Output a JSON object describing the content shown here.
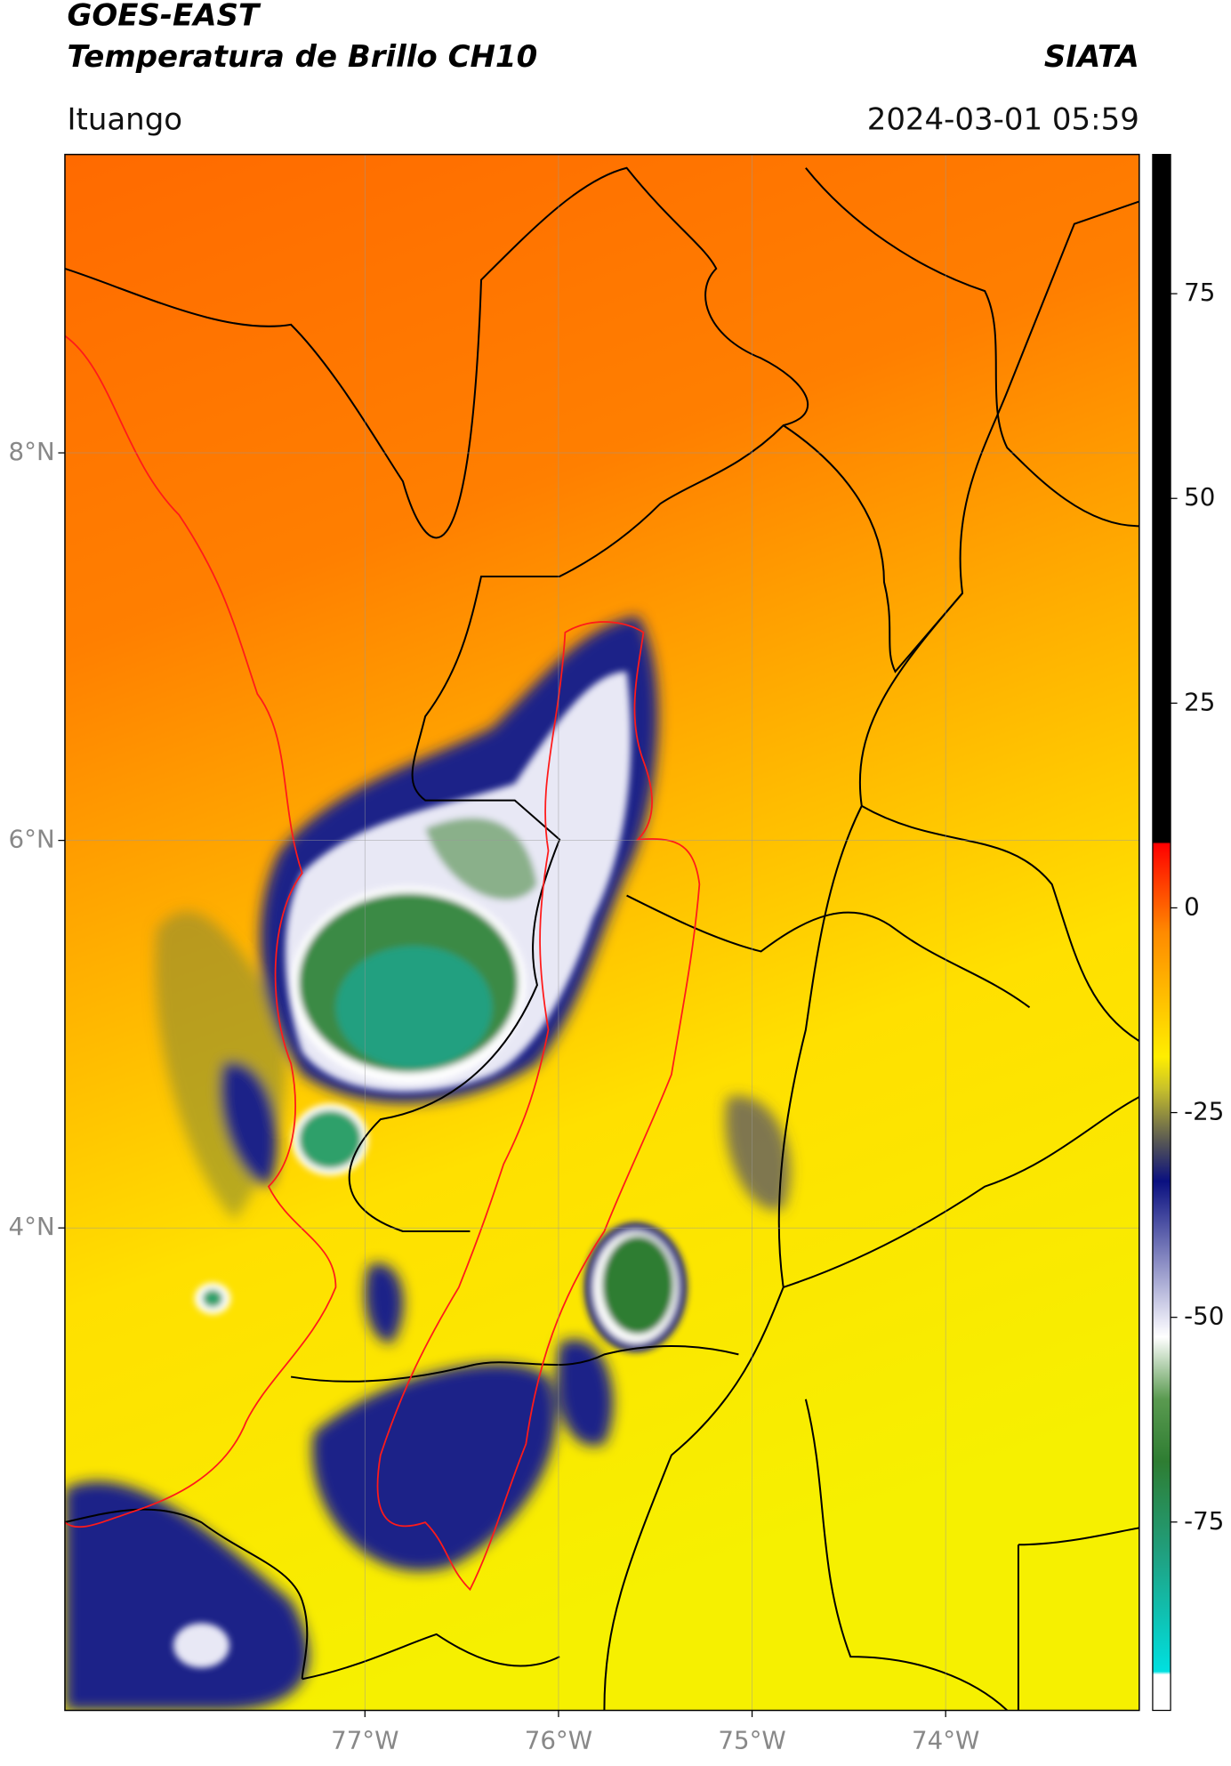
{
  "header": {
    "title": "GOES-EAST",
    "subtitle": "Temperatura de Brillo CH10",
    "brand": "SIATA",
    "location": "Ituango",
    "timestamp": "2024-03-01 05:59"
  },
  "map": {
    "lon_range": [
      -78.55,
      -73.0
    ],
    "lat_range": [
      1.51,
      9.54
    ],
    "lon_ticks": [
      {
        "value": -77,
        "label": "77°W"
      },
      {
        "value": -76,
        "label": "76°W"
      },
      {
        "value": -75,
        "label": "75°W"
      },
      {
        "value": -74,
        "label": "74°W"
      }
    ],
    "lat_ticks": [
      {
        "value": 8,
        "label": "8°N"
      },
      {
        "value": 6,
        "label": "6°N"
      },
      {
        "value": 4,
        "label": "4°N"
      }
    ]
  },
  "colorbar": {
    "range": [
      -98,
      92
    ],
    "ticks": [
      75,
      50,
      25,
      0,
      -25,
      -50,
      -75
    ]
  }
}
